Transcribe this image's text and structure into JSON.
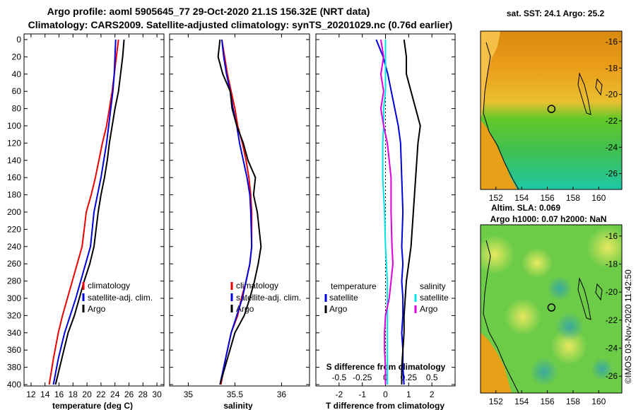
{
  "title": {
    "line1": "Argo profile: aoml 5905645_77 29-Oct-2020 21.1S 156.32E (NRT data)",
    "line2": "Climatology: CARS2009. Satellite-adjusted climatology: synTS_20201029.nc (0.76d earlier)"
  },
  "stamp": "©IMOS 03-Nov-2020 11:42:50",
  "colors": {
    "argo": "#000000",
    "clim": "#ee0000",
    "sat": "#0000dd",
    "sal_sat": "#00e5e5",
    "sal_clim": "#dd00dd"
  },
  "chart_data": [
    {
      "type": "line",
      "name": "temperature-profile",
      "xlabel": "temperature (deg C)",
      "ylabel": "depth",
      "xlim": [
        11,
        31
      ],
      "ylim": [
        0,
        400
      ],
      "xticks": [
        12,
        14,
        16,
        18,
        20,
        22,
        24,
        26,
        28,
        30
      ],
      "yticks": [
        0,
        20,
        40,
        60,
        80,
        100,
        120,
        140,
        160,
        180,
        200,
        220,
        240,
        260,
        280,
        300,
        320,
        340,
        360,
        380,
        400
      ],
      "legend": [
        "climatology",
        "satellite-adj. clim.",
        "Argo"
      ],
      "series": [
        {
          "name": "climatology",
          "color": "#ee0000",
          "x": [
            24.5,
            24.2,
            23.9,
            23.6,
            23.2,
            22.8,
            22.2,
            21.7,
            21.2,
            20.6,
            19.9,
            19.3,
            18.6,
            17.9,
            17.2,
            16.5,
            15.9,
            15.2,
            14.6
          ],
          "y": [
            0,
            20,
            40,
            60,
            80,
            100,
            120,
            140,
            160,
            180,
            200,
            240,
            260,
            280,
            300,
            320,
            340,
            370,
            400
          ]
        },
        {
          "name": "satellite-adj. clim.",
          "color": "#0000dd",
          "x": [
            24.1,
            24.0,
            23.9,
            23.7,
            23.4,
            23.1,
            22.8,
            22.4,
            22.0,
            21.5,
            21.0,
            20.5,
            19.8,
            19.1,
            18.4,
            17.6,
            16.8,
            15.9,
            15.2
          ],
          "y": [
            0,
            20,
            40,
            60,
            80,
            100,
            120,
            140,
            160,
            180,
            200,
            240,
            260,
            280,
            300,
            320,
            340,
            370,
            400
          ]
        },
        {
          "name": "Argo",
          "color": "#000000",
          "x": [
            25.3,
            25.1,
            24.8,
            24.5,
            24.0,
            23.6,
            23.2,
            22.9,
            22.5,
            22.0,
            21.6,
            21.0,
            20.4,
            19.6,
            18.9,
            18.2,
            17.3,
            16.4,
            15.5
          ],
          "y": [
            0,
            20,
            40,
            60,
            80,
            100,
            120,
            140,
            160,
            180,
            200,
            240,
            260,
            280,
            300,
            320,
            340,
            370,
            400
          ]
        }
      ]
    },
    {
      "type": "line",
      "name": "salinity-profile",
      "xlabel": "salinity",
      "ylabel": "depth",
      "xlim": [
        34.8,
        36.3
      ],
      "ylim": [
        0,
        400
      ],
      "xticks": [
        35,
        35.5,
        36
      ],
      "legend": [
        "climatology",
        "satellite-adj. clim.",
        "Argo"
      ],
      "series": [
        {
          "name": "climatology",
          "color": "#ee0000",
          "x": [
            35.36,
            35.39,
            35.42,
            35.46,
            35.5,
            35.53,
            35.58,
            35.62,
            35.65,
            35.67,
            35.68,
            35.68,
            35.66,
            35.62,
            35.57,
            35.53,
            35.46,
            35.4,
            35.35
          ],
          "y": [
            0,
            20,
            40,
            60,
            80,
            100,
            120,
            140,
            160,
            180,
            200,
            240,
            260,
            280,
            300,
            320,
            340,
            370,
            400
          ]
        },
        {
          "name": "satellite-adj. clim.",
          "color": "#0000dd",
          "x": [
            35.36,
            35.38,
            35.41,
            35.45,
            35.48,
            35.52,
            35.55,
            35.59,
            35.63,
            35.66,
            35.67,
            35.68,
            35.66,
            35.62,
            35.58,
            35.52,
            35.46,
            35.4,
            35.34
          ],
          "y": [
            0,
            20,
            40,
            60,
            80,
            100,
            120,
            140,
            160,
            180,
            200,
            240,
            260,
            280,
            300,
            320,
            340,
            370,
            400
          ]
        },
        {
          "name": "Argo",
          "color": "#000000",
          "x": [
            35.34,
            35.32,
            35.37,
            35.45,
            35.47,
            35.52,
            35.59,
            35.64,
            35.72,
            35.7,
            35.74,
            35.78,
            35.75,
            35.71,
            35.66,
            35.6,
            35.5,
            35.42,
            35.34
          ],
          "y": [
            0,
            20,
            40,
            60,
            80,
            100,
            120,
            140,
            160,
            180,
            200,
            240,
            260,
            280,
            300,
            320,
            340,
            370,
            400
          ]
        }
      ]
    },
    {
      "type": "line",
      "name": "difference-profile",
      "xlabel": "T difference from climatology",
      "xlabel_top": "S difference from climatology",
      "ylabel": "depth",
      "xlim": [
        -3,
        3
      ],
      "ylim": [
        0,
        400
      ],
      "xticks": [
        -2,
        -1,
        0,
        1,
        2
      ],
      "xticks_top": [
        -0.5,
        -0.25,
        0,
        0.25,
        0.5
      ],
      "xlim_top": [
        -0.75,
        0.75
      ],
      "legend": {
        "temperature": "temperature",
        "salinity": "salinity",
        "t_sat": "satellite",
        "t_argo": "Argo",
        "s_sat": "satellite",
        "s_argo": "Argo"
      },
      "series": [
        {
          "name": "T satellite",
          "color": "#0000dd",
          "x": [
            -0.4,
            -0.1,
            0.1,
            0.25,
            0.4,
            0.55,
            0.65,
            0.7,
            0.75,
            0.7,
            0.75,
            0.7,
            0.75,
            0.75,
            0.7,
            0.75,
            0.75,
            0.8
          ],
          "y": [
            0,
            20,
            40,
            60,
            80,
            100,
            120,
            160,
            200,
            240,
            260,
            280,
            300,
            320,
            340,
            360,
            380,
            400
          ],
          "axis": "bottom"
        },
        {
          "name": "T Argo",
          "color": "#000000",
          "x": [
            0.8,
            0.9,
            0.9,
            1.1,
            1.3,
            1.5,
            1.4,
            1.3,
            1.2,
            1.1,
            1.0,
            0.9,
            0.85,
            0.8,
            0.8,
            0.75,
            0.7,
            0.7
          ],
          "y": [
            0,
            20,
            40,
            60,
            80,
            100,
            120,
            160,
            200,
            240,
            260,
            280,
            300,
            320,
            340,
            360,
            380,
            400
          ],
          "axis": "bottom"
        },
        {
          "name": "S satellite",
          "color": "#00e5e5",
          "x": [
            0.0,
            0.0,
            0.0,
            0.0,
            -0.02,
            -0.02,
            -0.03,
            -0.03,
            -0.01,
            0.0,
            0.01,
            0.02,
            0.02,
            0.02,
            0.02,
            0.02,
            0.02,
            0.02
          ],
          "y": [
            0,
            20,
            40,
            60,
            80,
            100,
            120,
            160,
            200,
            240,
            260,
            280,
            300,
            320,
            340,
            360,
            380,
            400
          ],
          "axis": "top"
        },
        {
          "name": "S Argo",
          "color": "#dd00dd",
          "x": [
            -0.05,
            -0.02,
            -0.05,
            -0.02,
            -0.05,
            -0.02,
            0.02,
            0.06,
            0.06,
            0.07,
            0.08,
            0.06,
            0.04,
            0.0,
            -0.01,
            -0.01,
            0.0,
            0.0
          ],
          "y": [
            0,
            20,
            40,
            60,
            80,
            100,
            120,
            160,
            200,
            240,
            260,
            280,
            300,
            320,
            340,
            360,
            380,
            400
          ],
          "axis": "top"
        }
      ]
    }
  ],
  "maps": [
    {
      "name": "sst-map",
      "title": "sat. SST: 24.1 Argo: 25.2",
      "xticks": [
        152,
        154,
        156,
        158,
        160
      ],
      "yticks": [
        -16,
        -18,
        -20,
        -22,
        -24,
        -26
      ],
      "xlim": [
        150.8,
        161.8
      ],
      "ylim": [
        -27.2,
        -15.2
      ],
      "marker": {
        "lon": 156.32,
        "lat": -21.1
      }
    },
    {
      "name": "sla-map",
      "title1": "Altim. SLA: 0.069",
      "title2": "Argo h1000: 0.07 h2000: NaN",
      "xticks": [
        152,
        154,
        156,
        158,
        160
      ],
      "yticks": [
        -16,
        -18,
        -20,
        -22,
        -24,
        -26
      ],
      "xlim": [
        150.8,
        161.8
      ],
      "ylim": [
        -27.2,
        -15.2
      ],
      "marker": {
        "lon": 156.32,
        "lat": -21.1
      }
    }
  ]
}
